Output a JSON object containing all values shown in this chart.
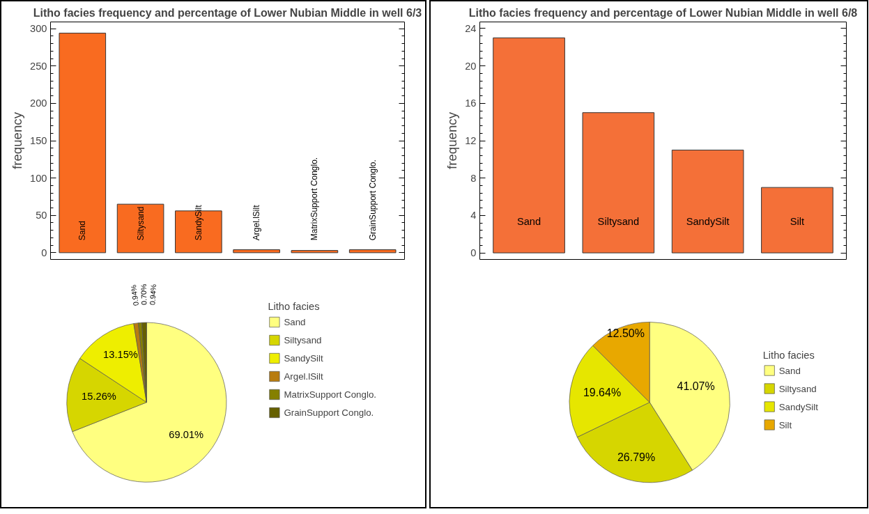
{
  "chart_data": [
    {
      "type": "bar",
      "title": "Litho facies frequency and percentage of Lower Nubian Middle in well 6/3",
      "ylabel": "frequency",
      "categories": [
        "Sand",
        "Siltysand",
        "SandySilt",
        "Argel.lSilt",
        "MatrixSupport Conglo.",
        "GrainSupport Conglo."
      ],
      "values": [
        294,
        65,
        56,
        4,
        3,
        4
      ],
      "color": "#f96b20",
      "ylim": [
        -9,
        309
      ],
      "yticks": [
        0,
        50,
        100,
        150,
        200,
        250,
        300
      ],
      "grid": false,
      "legend": false
    },
    {
      "type": "pie",
      "legend_title": "Litho facies",
      "categories": [
        "Sand",
        "Siltysand",
        "SandySilt",
        "Argel.lSilt",
        "MatrixSupport Conglo.",
        "GrainSupport Conglo."
      ],
      "values": [
        69.01,
        15.26,
        13.15,
        0.94,
        0.7,
        0.94
      ],
      "value_labels": [
        "69.01%",
        "15.26%",
        "13.15%",
        "0.94%",
        "0.70%",
        "0.94%"
      ],
      "colors": [
        "#ffff80",
        "#d6d600",
        "#eeee00",
        "#b87c10",
        "#858000",
        "#666000"
      ],
      "legend": "top right"
    },
    {
      "type": "bar",
      "title": "Litho facies frequency and percentage of Lower Nubian Middle in well 6/8",
      "ylabel": "frequency",
      "categories": [
        "Sand",
        "Siltysand",
        "SandySilt",
        "Silt"
      ],
      "values": [
        23,
        15,
        11,
        7
      ],
      "color": "#f47038",
      "ylim": [
        -0.7,
        24.7
      ],
      "yticks": [
        0,
        4,
        8,
        12,
        16,
        20,
        24
      ],
      "grid": false,
      "legend": false
    },
    {
      "type": "pie",
      "legend_title": "Litho facies",
      "categories": [
        "Sand",
        "Siltysand",
        "SandySilt",
        "Silt"
      ],
      "values": [
        41.07,
        26.79,
        19.64,
        12.5
      ],
      "value_labels": [
        "41.07%",
        "26.79%",
        "19.64%",
        "12.50%"
      ],
      "colors": [
        "#ffff80",
        "#d6d600",
        "#e6e600",
        "#e8a800"
      ],
      "legend": "right"
    }
  ]
}
